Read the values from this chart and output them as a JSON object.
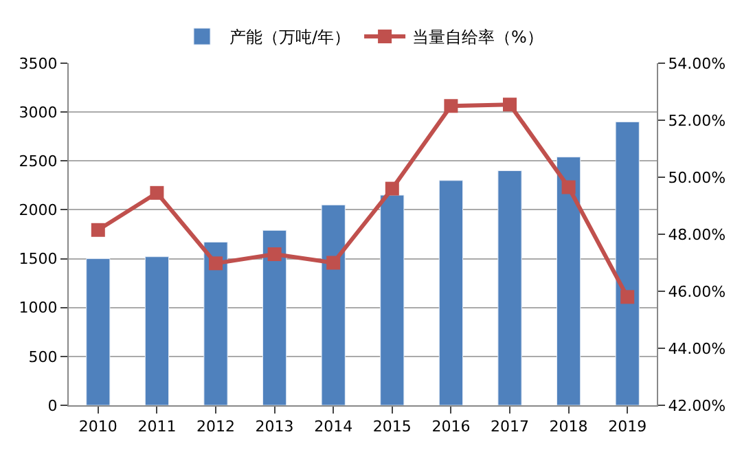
{
  "chart_data": {
    "type": "bar",
    "categories": [
      "2010",
      "2011",
      "2012",
      "2013",
      "2014",
      "2015",
      "2016",
      "2017",
      "2018",
      "2019"
    ],
    "series": [
      {
        "name": "产能（万吨/年）",
        "color": "#4f81bd",
        "values": [
          1500,
          1520,
          1670,
          1790,
          2050,
          2150,
          2300,
          2400,
          2540,
          2900
        ]
      },
      {
        "name": "当量自给率（%）",
        "type": "line",
        "axis": "y2",
        "color": "#c0504d",
        "marker": "square",
        "values": [
          48.15,
          49.45,
          46.98,
          47.3,
          47.0,
          49.6,
          52.5,
          52.55,
          49.65,
          45.8
        ]
      }
    ],
    "ylim": [
      0,
      3500
    ],
    "yticks": [
      0,
      500,
      1000,
      1500,
      2000,
      2500,
      3000,
      3500
    ],
    "y2lim": [
      42,
      54
    ],
    "y2ticks": [
      {
        "value": 42,
        "label": "42.00%"
      },
      {
        "value": 44,
        "label": "44.00%"
      },
      {
        "value": 46,
        "label": "46.00%"
      },
      {
        "value": 48,
        "label": "48.00%"
      },
      {
        "value": 50,
        "label": "50.00%"
      },
      {
        "value": 52,
        "label": "52.00%"
      },
      {
        "value": 54,
        "label": "54.00%"
      }
    ],
    "grid": "y",
    "legend": "top"
  }
}
